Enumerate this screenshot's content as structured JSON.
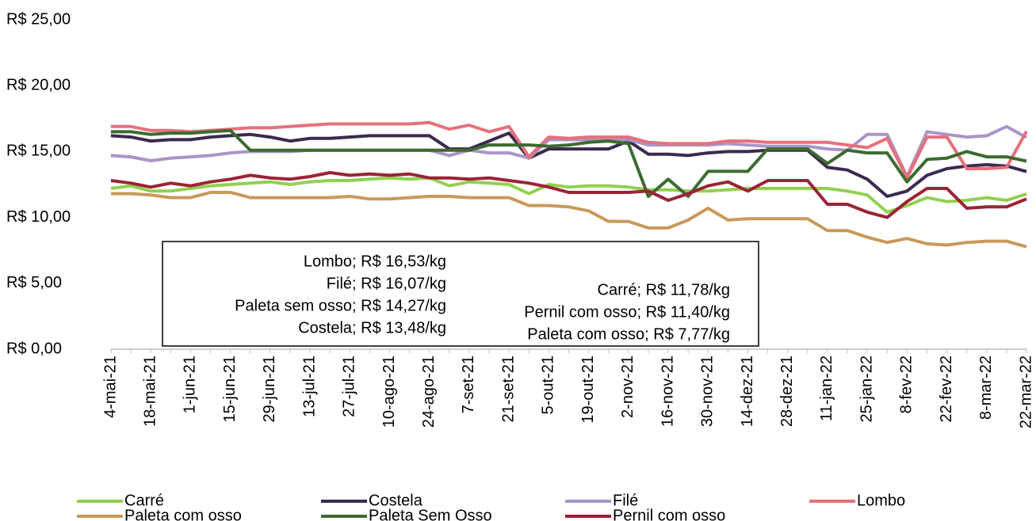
{
  "chart_data": {
    "type": "line",
    "categories": [
      "4-mai-21",
      null,
      "18-mai-21",
      null,
      "1-jun-21",
      null,
      "15-jun-21",
      null,
      "29-jun-21",
      null,
      "13-jul-21",
      null,
      "27-jul-21",
      null,
      "10-ago-21",
      null,
      "24-ago-21",
      null,
      "7-set-21",
      null,
      "21-set-21",
      null,
      "5-out-21",
      null,
      "19-out-21",
      null,
      "2-nov-21",
      null,
      "16-nov-21",
      null,
      "30-nov-21",
      null,
      "14-dez-21",
      null,
      "28-dez-21",
      null,
      "11-jan-22",
      null,
      "25-jan-22",
      null,
      "8-fev-22",
      null,
      "22-fev-22",
      null,
      "8-mar-22",
      null,
      "22-mar-22"
    ],
    "series": [
      {
        "name": "Carré",
        "color": "#92d050",
        "values": [
          12.2,
          12.4,
          12.0,
          12.0,
          12.2,
          12.4,
          12.5,
          12.6,
          12.7,
          12.5,
          12.7,
          12.8,
          12.8,
          12.9,
          13.0,
          12.9,
          13.0,
          12.4,
          12.7,
          12.6,
          12.5,
          11.8,
          12.5,
          12.3,
          12.4,
          12.4,
          12.3,
          12.1,
          12.1,
          12.0,
          12.0,
          12.1,
          12.2,
          12.2,
          12.2,
          12.2,
          12.2,
          12.0,
          11.7,
          10.4,
          10.9,
          11.5,
          11.2,
          11.3,
          11.5,
          11.3,
          11.78
        ]
      },
      {
        "name": "Costela",
        "color": "#3b2a4f",
        "values": [
          16.2,
          16.1,
          15.8,
          15.9,
          15.9,
          16.1,
          16.2,
          16.3,
          16.1,
          15.8,
          16.0,
          16.0,
          16.1,
          16.2,
          16.2,
          16.2,
          16.2,
          15.2,
          15.2,
          15.8,
          16.4,
          14.5,
          15.2,
          15.2,
          15.2,
          15.2,
          15.8,
          14.8,
          14.8,
          14.7,
          14.9,
          15.0,
          15.0,
          15.1,
          15.1,
          15.1,
          13.8,
          13.6,
          12.9,
          11.6,
          12.0,
          13.2,
          13.7,
          13.9,
          14.0,
          13.9,
          13.48
        ]
      },
      {
        "name": "Filé",
        "color": "#a895c8",
        "values": [
          14.7,
          14.6,
          14.3,
          14.5,
          14.6,
          14.7,
          14.9,
          15.0,
          15.0,
          15.0,
          15.1,
          15.1,
          15.1,
          15.1,
          15.1,
          15.1,
          15.1,
          14.7,
          15.1,
          14.9,
          14.9,
          14.5,
          15.9,
          15.9,
          15.9,
          15.9,
          15.9,
          15.5,
          15.5,
          15.5,
          15.5,
          15.6,
          15.5,
          15.4,
          15.4,
          15.4,
          15.2,
          15.1,
          16.3,
          16.3,
          13.1,
          16.5,
          16.3,
          16.1,
          16.2,
          16.9,
          16.07
        ]
      },
      {
        "name": "Lombo",
        "color": "#e6707b",
        "values": [
          16.9,
          16.9,
          16.6,
          16.6,
          16.5,
          16.6,
          16.7,
          16.8,
          16.8,
          16.9,
          17.0,
          17.1,
          17.1,
          17.1,
          17.1,
          17.1,
          17.2,
          16.7,
          17.0,
          16.5,
          16.9,
          14.6,
          16.1,
          16.0,
          16.1,
          16.1,
          16.1,
          15.7,
          15.6,
          15.6,
          15.6,
          15.8,
          15.8,
          15.7,
          15.7,
          15.7,
          15.7,
          15.5,
          15.3,
          16.0,
          13.0,
          16.1,
          16.1,
          13.7,
          13.7,
          13.8,
          16.53
        ]
      },
      {
        "name": "Paleta com osso",
        "color": "#c9995a",
        "values": [
          11.8,
          11.8,
          11.7,
          11.5,
          11.5,
          11.9,
          11.9,
          11.5,
          11.5,
          11.5,
          11.5,
          11.5,
          11.6,
          11.4,
          11.4,
          11.5,
          11.6,
          11.6,
          11.5,
          11.5,
          11.5,
          10.9,
          10.9,
          10.8,
          10.5,
          9.7,
          9.7,
          9.2,
          9.2,
          9.8,
          10.7,
          9.8,
          9.9,
          9.9,
          9.9,
          9.9,
          9.0,
          9.0,
          8.5,
          8.1,
          8.4,
          8.0,
          7.9,
          8.1,
          8.2,
          8.2,
          7.77
        ]
      },
      {
        "name": "Paleta Sem Osso",
        "color": "#3d6b2f",
        "values": [
          16.5,
          16.5,
          16.3,
          16.4,
          16.4,
          16.5,
          16.6,
          15.1,
          15.1,
          15.1,
          15.1,
          15.1,
          15.1,
          15.1,
          15.1,
          15.1,
          15.1,
          15.1,
          15.1,
          15.5,
          15.5,
          15.5,
          15.4,
          15.5,
          15.7,
          15.8,
          15.6,
          11.6,
          12.9,
          11.6,
          13.5,
          13.5,
          13.5,
          15.2,
          15.2,
          15.2,
          14.1,
          15.1,
          14.9,
          14.9,
          12.7,
          14.4,
          14.5,
          15.0,
          14.6,
          14.6,
          14.27
        ]
      },
      {
        "name": "Pernil com osso",
        "color": "#9b2335",
        "values": [
          12.8,
          12.6,
          12.3,
          12.6,
          12.4,
          12.7,
          12.9,
          13.2,
          13.0,
          12.9,
          13.1,
          13.4,
          13.2,
          13.3,
          13.2,
          13.3,
          13.0,
          13.0,
          12.9,
          13.0,
          12.8,
          12.6,
          12.3,
          11.9,
          11.9,
          11.9,
          11.9,
          12.0,
          11.3,
          11.8,
          12.4,
          12.7,
          12.0,
          12.8,
          12.8,
          12.8,
          11.0,
          11.0,
          10.4,
          10.0,
          11.2,
          12.2,
          12.2,
          10.7,
          10.8,
          10.8,
          11.4
        ]
      }
    ],
    "ylim": [
      0,
      25
    ],
    "yticks": [
      {
        "value": 0,
        "label": "R$ 0,00"
      },
      {
        "value": 5,
        "label": "R$ 5,00"
      },
      {
        "value": 10,
        "label": "R$ 10,00"
      },
      {
        "value": 15,
        "label": "R$ 15,00"
      },
      {
        "value": 20,
        "label": "R$ 20,00"
      },
      {
        "value": 25,
        "label": "R$ 25,00"
      }
    ],
    "grid": false,
    "annotations": [
      "Lombo; R$ 16,53/kg",
      "Filé; R$ 16,07/kg",
      "Paleta sem osso; R$ 14,27/kg",
      "Costela; R$ 13,48/kg",
      "Carré; R$ 11,78/kg",
      "Pernil com osso; R$ 11,40/kg",
      "Paleta com osso; R$ 7,77/kg"
    ]
  }
}
